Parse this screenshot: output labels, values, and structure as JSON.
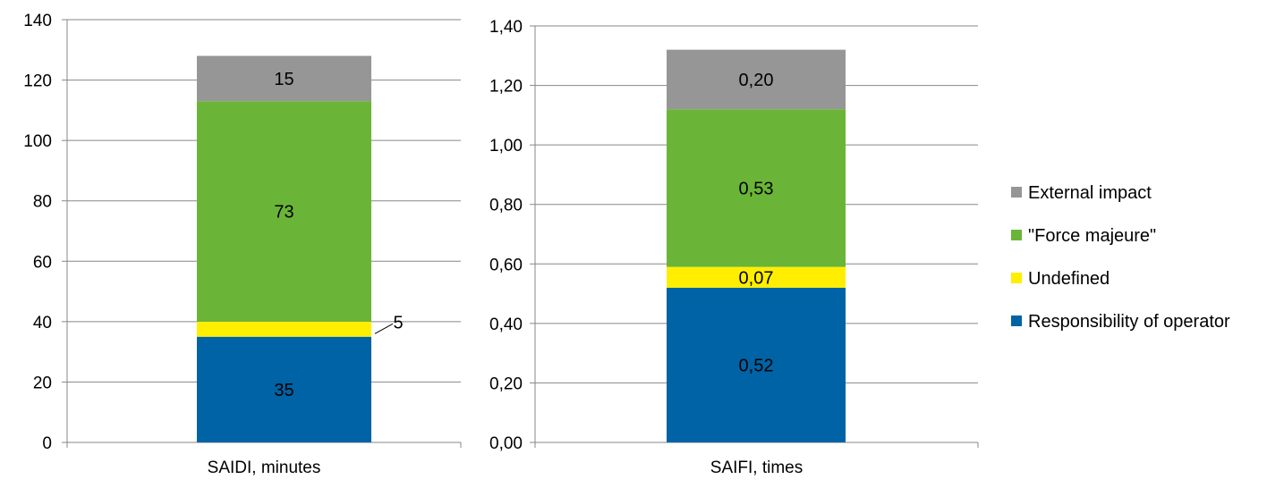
{
  "chart_data": [
    {
      "type": "bar",
      "stacked": true,
      "categories": [
        "SAIDI, minutes"
      ],
      "ylim": [
        0,
        140
      ],
      "y_ticks": [
        "0",
        "20",
        "40",
        "60",
        "80",
        "100",
        "120",
        "140"
      ],
      "y_tick_values": [
        0,
        20,
        40,
        60,
        80,
        100,
        120,
        140
      ],
      "grid": true,
      "series": [
        {
          "name": "Responsibility of operator",
          "values": [
            35
          ],
          "labels": [
            "35"
          ]
        },
        {
          "name": "Undefined",
          "values": [
            5
          ],
          "labels": [
            "5"
          ]
        },
        {
          "name": "\"Force majeure\"",
          "values": [
            73
          ],
          "labels": [
            "73"
          ]
        },
        {
          "name": "External impact",
          "values": [
            15
          ],
          "labels": [
            "15"
          ]
        }
      ]
    },
    {
      "type": "bar",
      "stacked": true,
      "categories": [
        "SAIFI, times"
      ],
      "ylim": [
        0,
        1.4
      ],
      "y_ticks": [
        "0,00",
        "0,20",
        "0,40",
        "0,60",
        "0,80",
        "1,00",
        "1,20",
        "1,40"
      ],
      "y_tick_values": [
        0,
        0.2,
        0.4,
        0.6,
        0.8,
        1.0,
        1.2,
        1.4
      ],
      "grid": true,
      "series": [
        {
          "name": "Responsibility of operator",
          "values": [
            0.52
          ],
          "labels": [
            "0,52"
          ]
        },
        {
          "name": "Undefined",
          "values": [
            0.07
          ],
          "labels": [
            "0,07"
          ]
        },
        {
          "name": "\"Force majeure\"",
          "values": [
            0.53
          ],
          "labels": [
            "0,53"
          ]
        },
        {
          "name": "External impact",
          "values": [
            0.2
          ],
          "labels": [
            "0,20"
          ]
        }
      ]
    }
  ],
  "legend": {
    "placement": "right",
    "items": [
      {
        "name": "External impact",
        "color": "#969696"
      },
      {
        "name": "\"Force majeure\"",
        "color": "#6ab537"
      },
      {
        "name": "Undefined",
        "color": "#ffee00"
      },
      {
        "name": "Responsibility of operator",
        "color": "#0063a5"
      }
    ]
  },
  "colors": {
    "Responsibility of operator": "#0063a5",
    "Undefined": "#ffee00",
    "\"Force majeure\"": "#6ab537",
    "External impact": "#969696"
  }
}
